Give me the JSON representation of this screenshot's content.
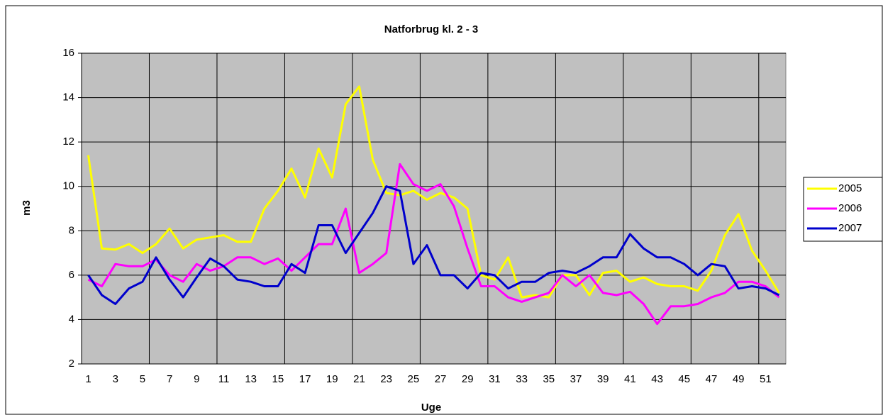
{
  "chart_data": {
    "type": "line",
    "title": "Natforbrug kl. 2 - 3",
    "x_label": "Uge",
    "y_label": "m3",
    "categories": [
      1,
      null,
      3,
      null,
      5,
      null,
      7,
      null,
      9,
      null,
      11,
      null,
      13,
      null,
      15,
      null,
      17,
      null,
      19,
      null,
      21,
      null,
      23,
      null,
      25,
      null,
      27,
      null,
      29,
      null,
      31,
      null,
      33,
      null,
      35,
      null,
      37,
      null,
      39,
      null,
      41,
      null,
      43,
      null,
      45,
      null,
      47,
      null,
      49,
      null,
      51,
      null
    ],
    "series": [
      {
        "name": "2005",
        "color": "#ffff00",
        "values": [
          11.4,
          7.2,
          7.15,
          7.4,
          7.0,
          7.4,
          8.1,
          7.2,
          7.6,
          7.7,
          7.8,
          7.5,
          7.5,
          9.0,
          9.8,
          10.8,
          9.5,
          11.7,
          10.4,
          13.7,
          14.5,
          11.2,
          9.7,
          9.6,
          9.8,
          9.4,
          9.7,
          9.5,
          9.0,
          6.0,
          5.8,
          6.8,
          5.0,
          5.1,
          5.0,
          6.0,
          6.0,
          5.1,
          6.1,
          6.2,
          5.7,
          5.9,
          5.6,
          5.5,
          5.5,
          5.3,
          6.2,
          7.8,
          8.75,
          7.1,
          6.2,
          5.2
        ]
      },
      {
        "name": "2006",
        "color": "#ff00ff",
        "values": [
          5.8,
          5.5,
          6.5,
          6.4,
          6.4,
          6.7,
          6.0,
          5.7,
          6.5,
          6.2,
          6.4,
          6.8,
          6.8,
          6.5,
          6.75,
          6.2,
          6.8,
          7.4,
          7.4,
          9.0,
          6.1,
          6.5,
          7.0,
          11.0,
          10.1,
          9.8,
          10.1,
          9.1,
          7.2,
          5.5,
          5.5,
          5.0,
          4.8,
          5.0,
          5.2,
          6.0,
          5.5,
          6.0,
          5.2,
          5.1,
          5.25,
          4.7,
          3.8,
          4.6,
          4.6,
          4.7,
          5.0,
          5.2,
          5.7,
          5.7,
          5.5,
          5.0
        ]
      },
      {
        "name": "2007",
        "color": "#0000cc",
        "values": [
          6.0,
          5.1,
          4.7,
          5.4,
          5.7,
          6.8,
          5.8,
          5.0,
          5.9,
          6.75,
          6.4,
          5.8,
          5.7,
          5.5,
          5.5,
          6.5,
          6.1,
          8.25,
          8.25,
          7.0,
          7.9,
          8.8,
          10.0,
          9.8,
          6.5,
          7.35,
          6.0,
          6.0,
          5.4,
          6.1,
          6.0,
          5.4,
          5.7,
          5.7,
          6.1,
          6.2,
          6.1,
          6.4,
          6.8,
          6.8,
          7.85,
          7.2,
          6.8,
          6.8,
          6.5,
          6.0,
          6.5,
          6.4,
          5.4,
          5.5,
          5.4,
          5.1
        ]
      }
    ],
    "ylim": [
      2,
      16
    ],
    "yticks": [
      2,
      4,
      6,
      8,
      10,
      12,
      14,
      16
    ],
    "grid": true,
    "legend": "right"
  }
}
